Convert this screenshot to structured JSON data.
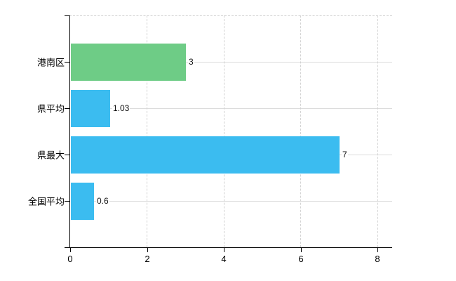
{
  "chart": {
    "background": "#ffffff",
    "axis_color": "#000000",
    "horizontal_grid_color": "#dcdcdc",
    "vertical_grid_color": "#d2d2d2",
    "top_border_color": "#cccccc",
    "green_bar_color": "#6ecc86",
    "blue_bar_color": "#3bbcf0"
  },
  "chart_data": {
    "type": "bar",
    "orientation": "horizontal",
    "title": "",
    "xlabel": "",
    "ylabel": "",
    "categories": [
      "港南区",
      "県平均",
      "県最大",
      "全国平均"
    ],
    "values": [
      3,
      1.03,
      7,
      0.6
    ],
    "value_labels": [
      "3",
      "1.03",
      "7",
      "0.6"
    ],
    "bar_colors": [
      "#6ecc86",
      "#3bbcf0",
      "#3bbcf0",
      "#3bbcf0"
    ],
    "x_ticks": [
      0,
      2,
      4,
      6,
      8
    ],
    "x_tick_labels": [
      "0",
      "2",
      "4",
      "6",
      "8"
    ],
    "xlim": [
      0,
      8.37
    ],
    "grid": true,
    "legend": false
  }
}
